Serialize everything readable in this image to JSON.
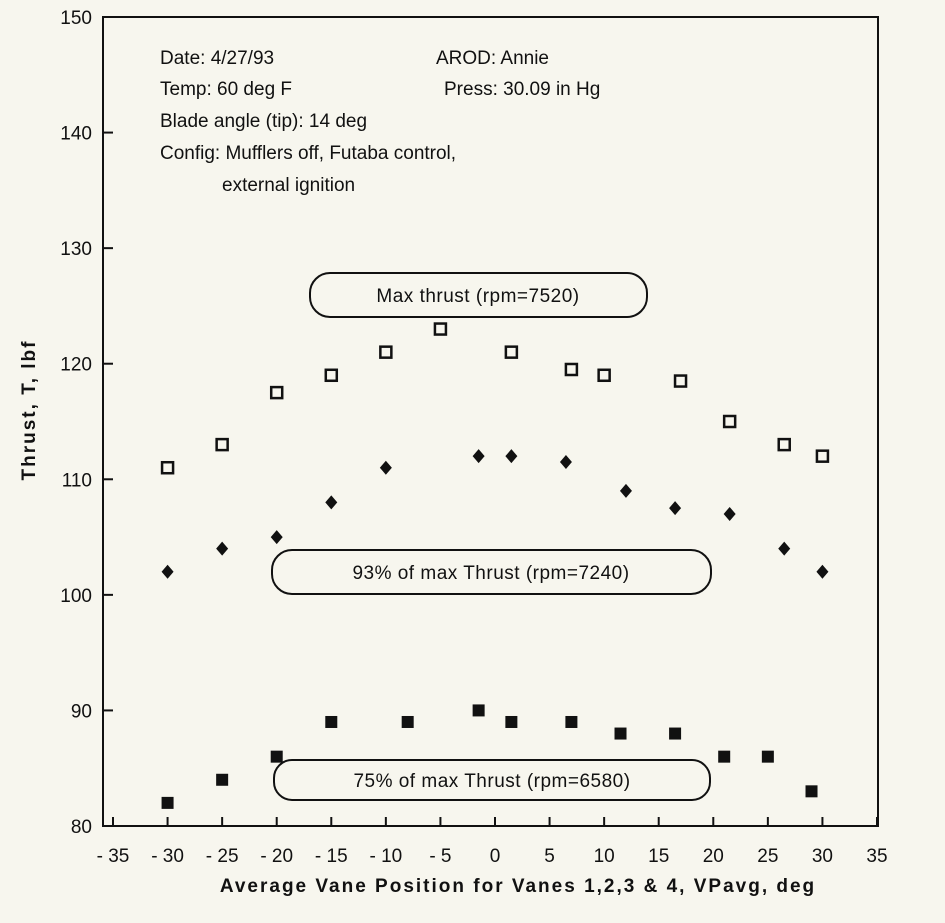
{
  "chart_data": {
    "type": "scatter",
    "xlabel": "Average Vane Position for Vanes 1,2,3 & 4, VPavg, deg",
    "ylabel": "Thrust, T, lbf",
    "xlim": [
      -35,
      35
    ],
    "ylim": [
      80,
      150
    ],
    "x_ticks": [
      "-35",
      "-30",
      "-25",
      "-20",
      "-15",
      "-10",
      "-5",
      "0",
      "5",
      "10",
      "15",
      "20",
      "25",
      "30",
      "35"
    ],
    "y_ticks": [
      "80",
      "90",
      "100",
      "110",
      "120",
      "130",
      "140",
      "150"
    ],
    "grid": false,
    "annotations": [
      "Date: 4/27/93",
      "AROD: Annie",
      "Temp: 60 deg F",
      "Press: 30.09 in Hg",
      "Blade angle (tip): 14 deg",
      "Config: Mufflers off, Futaba control,",
      "external ignition"
    ],
    "series": [
      {
        "name": "Max thrust (rpm=7520)",
        "marker": "hollow-square",
        "x": [
          -30,
          -25,
          -20,
          -15,
          -10,
          -5,
          1.5,
          7,
          10,
          17,
          21.5,
          26.5,
          30
        ],
        "y": [
          111,
          113,
          117.5,
          119,
          121,
          123,
          121,
          119.5,
          119,
          118.5,
          115,
          113,
          112
        ]
      },
      {
        "name": "93% of max Thrust (rpm=7240)",
        "marker": "diamond",
        "x": [
          -30,
          -25,
          -20,
          -15,
          -10,
          -1.5,
          1.5,
          6.5,
          12,
          16.5,
          21.5,
          26.5,
          30
        ],
        "y": [
          102,
          104,
          105,
          108,
          111,
          112,
          112,
          111.5,
          109,
          107.5,
          107,
          104,
          102
        ]
      },
      {
        "name": "75% of max Thrust (rpm=6580)",
        "marker": "filled-square",
        "x": [
          -30,
          -25,
          -20,
          -15,
          -8,
          -1.5,
          1.5,
          7,
          11.5,
          16.5,
          21,
          25,
          29
        ],
        "y": [
          82,
          84,
          86,
          89,
          89,
          90,
          89,
          89,
          88,
          88,
          86,
          86,
          83
        ]
      }
    ]
  }
}
